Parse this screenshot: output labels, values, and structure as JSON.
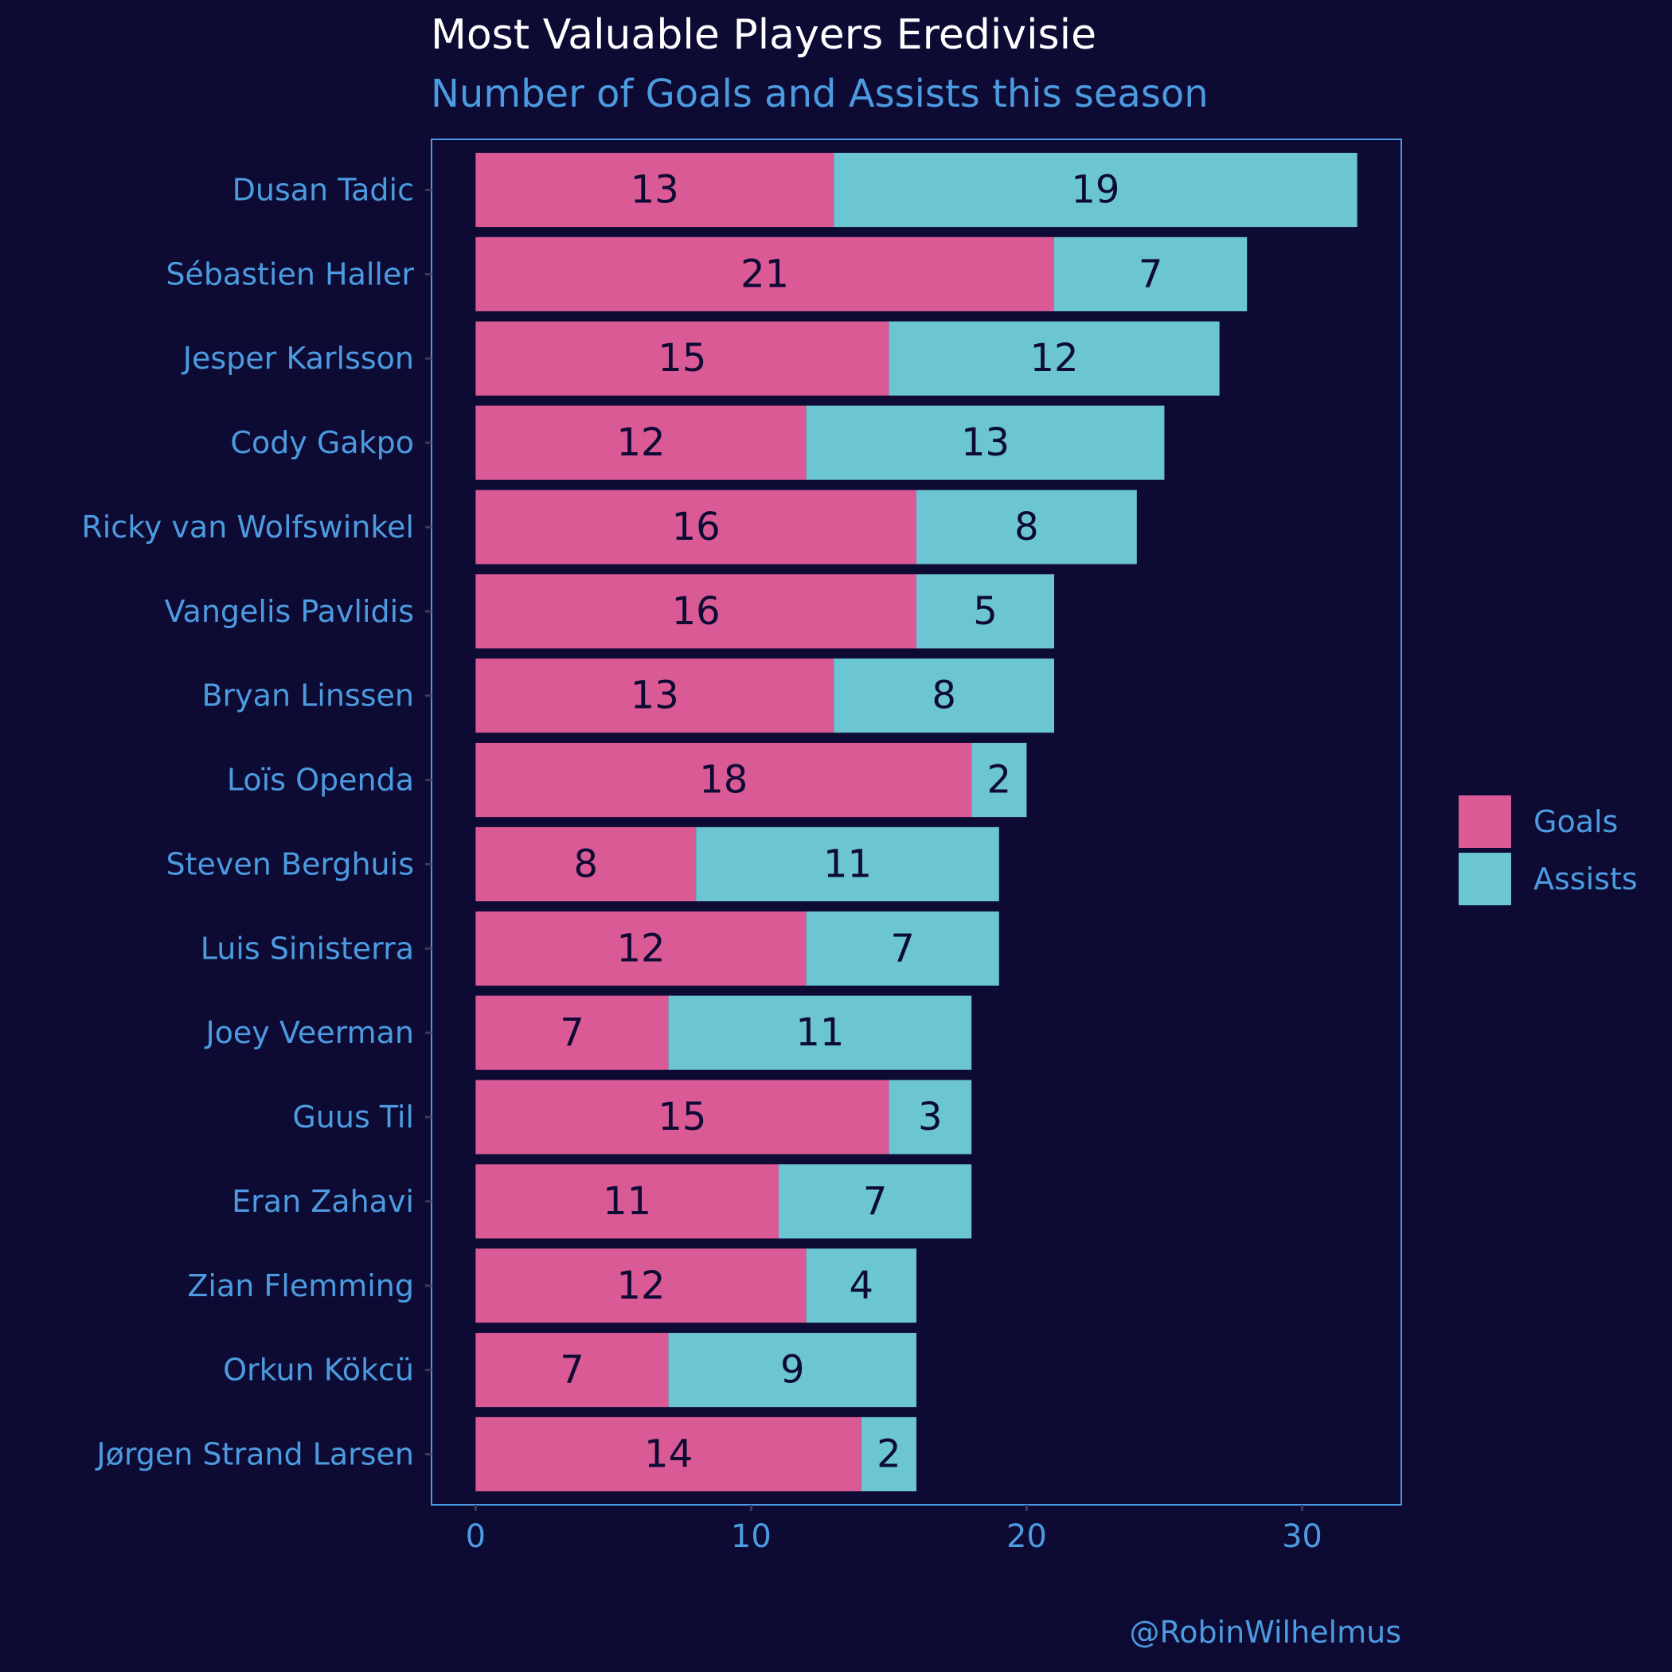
{
  "colors": {
    "background": "#0d0a33",
    "goals": "#da5a96",
    "assists": "#6bc5d3",
    "text_accent": "#4c9be0",
    "title": "#ffffff",
    "bar_label": "#0d0a33"
  },
  "chart_data": {
    "type": "bar",
    "orientation": "horizontal",
    "stacked": true,
    "title": "Most Valuable Players Eredivisie",
    "subtitle": "Number of Goals and Assists this season",
    "caption": "@RobinWilhelmus",
    "categories": [
      "Dusan Tadic",
      "Sébastien Haller",
      "Jesper Karlsson",
      "Cody Gakpo",
      "Ricky van Wolfswinkel",
      "Vangelis Pavlidis",
      "Bryan Linssen",
      "Loïs Openda",
      "Steven Berghuis",
      "Luis Sinisterra",
      "Joey Veerman",
      "Guus Til",
      "Eran Zahavi",
      "Zian Flemming",
      "Orkun Kökcü",
      "Jørgen Strand Larsen"
    ],
    "series": [
      {
        "name": "Goals",
        "color": "#da5a96",
        "values": [
          13,
          21,
          15,
          12,
          16,
          16,
          13,
          18,
          8,
          12,
          7,
          15,
          11,
          12,
          7,
          14
        ]
      },
      {
        "name": "Assists",
        "color": "#6bc5d3",
        "values": [
          19,
          7,
          12,
          13,
          8,
          5,
          8,
          2,
          11,
          7,
          11,
          3,
          7,
          4,
          9,
          2
        ]
      }
    ],
    "x_ticks": [
      0,
      10,
      20,
      30
    ],
    "xlim": [
      -1.6,
      33.6
    ],
    "xlabel": "",
    "ylabel": "",
    "grid": false,
    "legend_position": "right"
  }
}
